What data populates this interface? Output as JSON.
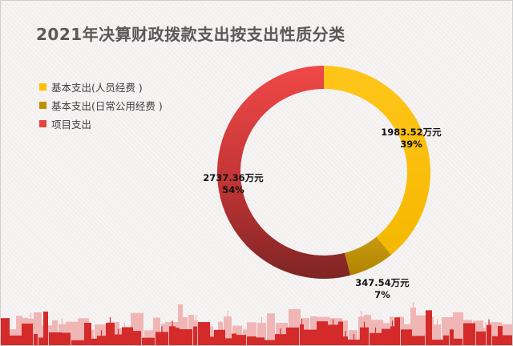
{
  "chart_data": {
    "type": "pie",
    "variant": "donut",
    "title": "2021年决算财政拨款支出按支出性质分类",
    "legend_position": "left",
    "unit": "万元",
    "categories": [
      "基本支出(人员经费 )",
      "基本支出(日常公用经费 )",
      "项目支出"
    ],
    "values": [
      1983.52,
      347.54,
      2737.36
    ],
    "percent_labels": [
      "39%",
      "7%",
      "54%"
    ],
    "value_labels": [
      "1983.52万元",
      "347.54万元",
      "2737.36万元"
    ],
    "colors": [
      "#FFC000",
      "#BF9000",
      "#E8433F"
    ]
  }
}
